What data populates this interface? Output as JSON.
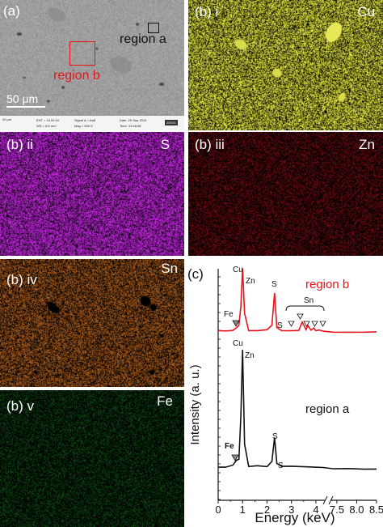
{
  "panels": {
    "a": {
      "label": "(a)",
      "region_a_label": "region a",
      "region_b_label": "region b",
      "scale_bar_label": "50 μm",
      "sem_info": {
        "scale": "20 μm",
        "eht": "EHT = 10.00 kV",
        "wd": "WD = 8.5 mm",
        "signal": "Signal A = AsB",
        "mag": "Mag = 500 X",
        "date": "Date :29 Sep 2019",
        "time": "Time :13:48:58",
        "brand": "ZEISS"
      }
    },
    "b_i": {
      "label": "(b) i",
      "element": "Cu",
      "color": "#cfd23a"
    },
    "b_ii": {
      "label": "(b) ii",
      "element": "S",
      "color": "#b523cf"
    },
    "b_iii": {
      "label": "(b) iii",
      "element": "Zn",
      "color": "#6a0a10"
    },
    "b_iv": {
      "label": "(b) iv",
      "element": "Sn",
      "color": "#a0561a"
    },
    "b_v": {
      "label": "(b) v",
      "element": "Fe",
      "color": "#0e4a14"
    }
  },
  "chart_data": {
    "type": "line",
    "panel_label": "(c)",
    "xlabel": "Energy (keV)",
    "ylabel": "Intensity (a. u.)",
    "xticks": [
      "0",
      "1",
      "2",
      "3",
      "4",
      "7.5",
      "8.0",
      "8.5"
    ],
    "broken_axis": true,
    "series": [
      {
        "name": "region b",
        "color": "#e8141c",
        "x": [
          0,
          0.3,
          0.6,
          0.75,
          0.85,
          0.93,
          1.0,
          1.08,
          1.25,
          1.6,
          2.0,
          2.2,
          2.31,
          2.4,
          2.6,
          3.0,
          3.3,
          3.44,
          3.6,
          3.67,
          3.8,
          3.92,
          4.0,
          4.13,
          4.3,
          7.4,
          7.8,
          8.2,
          8.5
        ],
        "values": [
          0.04,
          0.04,
          0.04,
          0.08,
          0.12,
          0.42,
          1.0,
          0.3,
          0.05,
          0.05,
          0.05,
          0.12,
          0.62,
          0.09,
          0.05,
          0.05,
          0.05,
          0.18,
          0.06,
          0.12,
          0.05,
          0.09,
          0.04,
          0.06,
          0.04,
          0.02,
          0.02,
          0.02,
          0.02
        ]
      },
      {
        "name": "region a",
        "color": "#111111",
        "x": [
          0,
          0.3,
          0.6,
          0.75,
          0.85,
          0.93,
          1.0,
          1.08,
          1.25,
          1.6,
          2.0,
          2.2,
          2.31,
          2.4,
          2.6,
          3.0,
          4.3,
          7.4,
          7.8,
          8.2,
          8.5
        ],
        "values": [
          0.03,
          0.03,
          0.05,
          0.09,
          0.1,
          0.45,
          1.0,
          0.22,
          0.04,
          0.04,
          0.04,
          0.08,
          0.28,
          0.06,
          0.04,
          0.04,
          0.03,
          0.02,
          0.02,
          0.02,
          0.02
        ]
      }
    ],
    "peak_labels": {
      "region_b": {
        "cu": "Cu",
        "zn": "Zn",
        "s": "S",
        "s2": "S",
        "fe": "Fe",
        "sn": "Sn"
      },
      "region_a": {
        "cu": "Cu",
        "zn": "Zn",
        "s": "S",
        "s2": "S",
        "fe": "Fe"
      }
    },
    "legend": {
      "region_b": "region b",
      "region_a": "region a"
    }
  }
}
